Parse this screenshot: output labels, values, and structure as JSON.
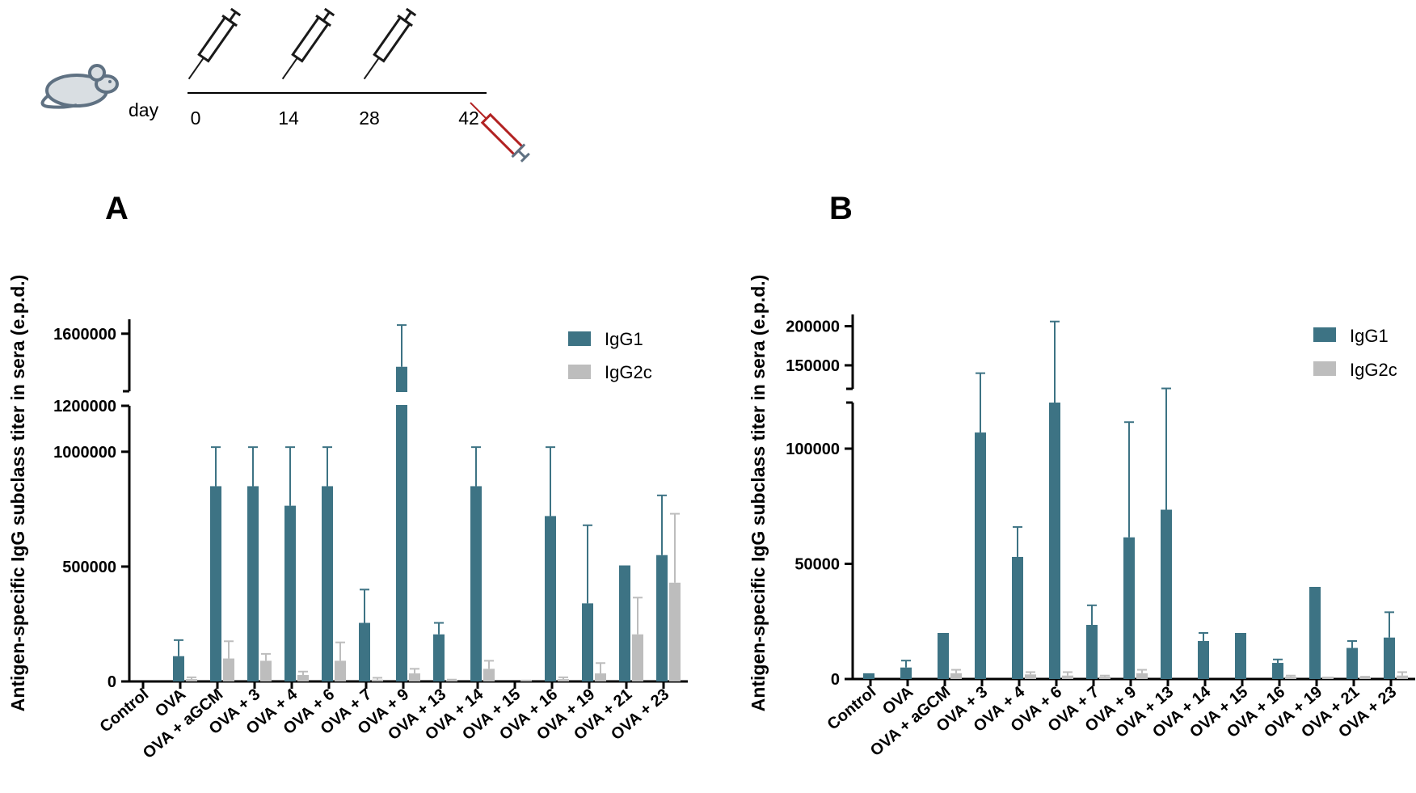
{
  "timeline": {
    "day_label": "day",
    "days": [
      "0",
      "14",
      "28",
      "42"
    ],
    "colors": {
      "injection": "#1a1a1a",
      "bleed": "#b22222",
      "mouse": "#5f7182"
    }
  },
  "colors": {
    "IgG1": "#3d7384",
    "IgG2c": "#bdbdbd",
    "axis": "#000000"
  },
  "chart_data": [
    {
      "panel_label": "A",
      "type": "bar",
      "ylabel": "Antigen-specific IgG subclass titer in sera (e.p.d.)",
      "categories": [
        "Control",
        "OVA",
        "OVA + aGCM",
        "OVA + 3",
        "OVA + 4",
        "OVA + 6",
        "OVA + 7",
        "OVA + 9",
        "OVA + 13",
        "OVA + 14",
        "OVA + 15",
        "OVA + 16",
        "OVA + 19",
        "OVA + 21",
        "OVA + 23"
      ],
      "series": [
        {
          "name": "IgG1",
          "values": [
            0,
            110000,
            850000,
            850000,
            765000,
            850000,
            255000,
            1370000,
            205000,
            850000,
            0,
            720000,
            340000,
            505000,
            550000
          ],
          "errors": [
            0,
            70000,
            170000,
            170000,
            255000,
            170000,
            145000,
            290000,
            50000,
            170000,
            0,
            300000,
            340000,
            0,
            260000
          ]
        },
        {
          "name": "IgG2c",
          "values": [
            0,
            10000,
            100000,
            90000,
            28000,
            90000,
            8000,
            35000,
            4000,
            55000,
            2000,
            10000,
            35000,
            205000,
            430000
          ],
          "errors": [
            0,
            8000,
            75000,
            30000,
            15000,
            80000,
            8000,
            20000,
            4000,
            35000,
            2000,
            8000,
            45000,
            160000,
            300000
          ]
        }
      ],
      "y_axis": {
        "broken": true,
        "lower": {
          "range": [
            0,
            1200000
          ],
          "ticks": [
            0,
            500000,
            1000000
          ],
          "tick_labels": [
            "0",
            "500000",
            "1000000"
          ]
        },
        "upper": {
          "range": [
            1200000,
            1700000
          ],
          "ticks": [
            1200000,
            1600000
          ],
          "tick_labels": [
            "1200000",
            "1600000"
          ]
        }
      },
      "legend": [
        "IgG1",
        "IgG2c"
      ],
      "legend_position": "top-right"
    },
    {
      "panel_label": "B",
      "type": "bar",
      "ylabel": "Antigen-specific IgG subclass titer in sera (e.p.d.)",
      "categories": [
        "Control",
        "OVA",
        "OVA + aGCM",
        "OVA + 3",
        "OVA + 4",
        "OVA + 6",
        "OVA + 7",
        "OVA + 9",
        "OVA + 13",
        "OVA + 14",
        "OVA + 15",
        "OVA + 16",
        "OVA + 19",
        "OVA + 21",
        "OVA + 23"
      ],
      "series": [
        {
          "name": "IgG1",
          "values": [
            2500,
            5000,
            20000,
            107000,
            53000,
            120000,
            23500,
            61500,
            73500,
            16500,
            20000,
            7000,
            40000,
            13500,
            18000
          ],
          "errors": [
            0,
            3000,
            0,
            33000,
            13000,
            86000,
            8500,
            50000,
            47000,
            3500,
            0,
            1500,
            0,
            3000,
            11000
          ]
        },
        {
          "name": "IgG2c",
          "values": [
            0,
            0,
            2500,
            0,
            2000,
            1500,
            1000,
            2500,
            0,
            0,
            0,
            1000,
            1000,
            500,
            1500
          ],
          "errors": [
            0,
            0,
            1500,
            0,
            1000,
            1500,
            500,
            1500,
            0,
            0,
            0,
            500,
            0,
            500,
            1500
          ]
        }
      ],
      "y_axis": {
        "broken": true,
        "lower": {
          "range": [
            0,
            120000
          ],
          "ticks": [
            0,
            50000,
            100000
          ],
          "tick_labels": [
            "0",
            "50000",
            "100000"
          ]
        },
        "upper": {
          "range": [
            120000,
            215000
          ],
          "ticks": [
            150000,
            200000
          ],
          "tick_labels": [
            "150000",
            "200000"
          ]
        }
      },
      "legend": [
        "IgG1",
        "IgG2c"
      ],
      "legend_position": "top-right"
    }
  ]
}
